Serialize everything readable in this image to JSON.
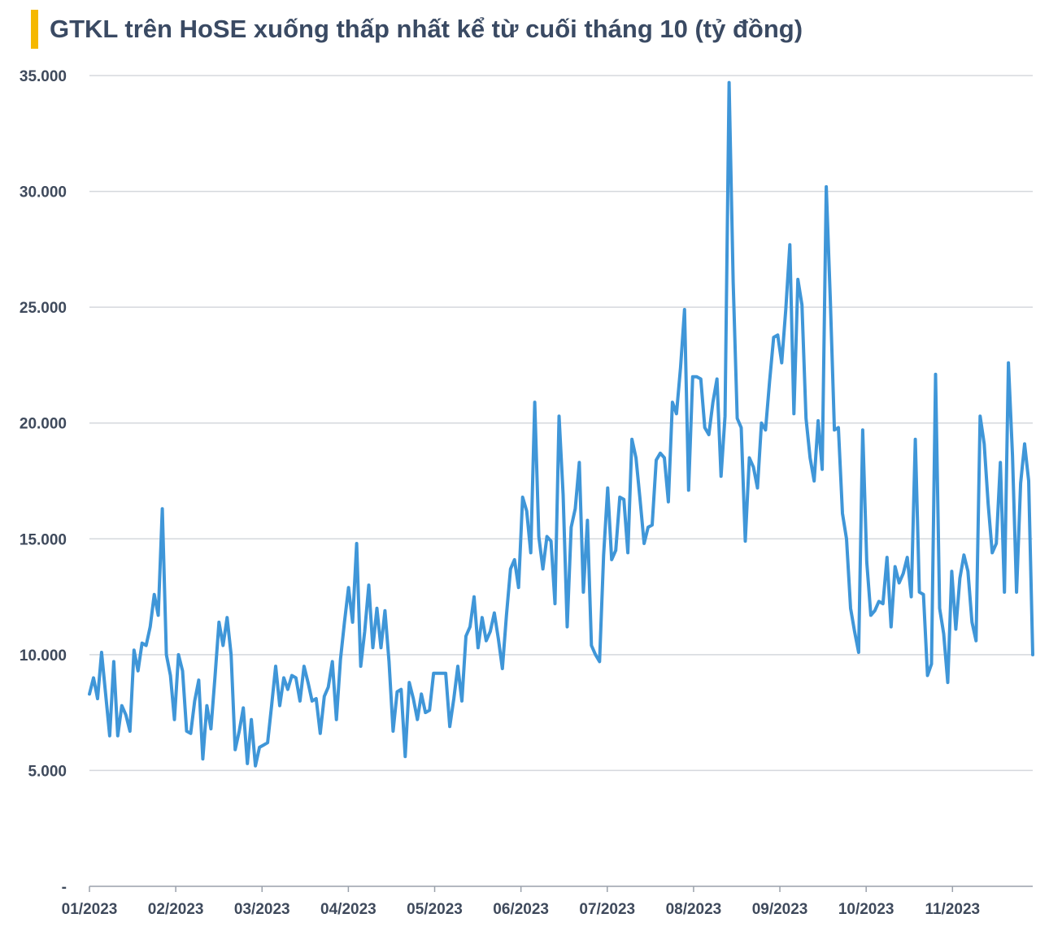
{
  "title": "GTKL trên HoSE xuống thấp nhất kể từ cuối tháng 10 (tỷ đồng)",
  "colors": {
    "accent": "#f5b800",
    "line": "#3f96d8",
    "grid": "#d5d8dd",
    "axis": "#9aa1ab",
    "text": "#3f4a5c"
  },
  "chart_data": {
    "type": "line",
    "title": "GTKL trên HoSE xuống thấp nhất kể từ cuối tháng 10 (tỷ đồng)",
    "ylim": [
      0,
      35000
    ],
    "y_ticks": [
      {
        "value": 0,
        "label": "-"
      },
      {
        "value": 5000,
        "label": "5.000"
      },
      {
        "value": 10000,
        "label": "10.000"
      },
      {
        "value": 15000,
        "label": "15.000"
      },
      {
        "value": 20000,
        "label": "20.000"
      },
      {
        "value": 25000,
        "label": "25.000"
      },
      {
        "value": 30000,
        "label": "30.000"
      },
      {
        "value": 35000,
        "label": "35.000"
      }
    ],
    "x_ticks": [
      "01/2023",
      "02/2023",
      "03/2023",
      "04/2023",
      "05/2023",
      "06/2023",
      "07/2023",
      "08/2023",
      "09/2023",
      "10/2023",
      "11/2023"
    ],
    "grid": true,
    "legend": "none",
    "series": [
      {
        "values": [
          8300,
          9000,
          8100,
          10100,
          8300,
          6500,
          9700,
          6500,
          7800,
          7400,
          6700,
          10200,
          9300,
          10500,
          10400,
          11200,
          12600,
          11700,
          16300,
          10000,
          9100,
          7200,
          10000,
          9300,
          6700,
          6600,
          8000,
          8900,
          5500,
          7800,
          6800,
          9000,
          11400,
          10400,
          11600,
          10000,
          5900,
          6700,
          7700,
          5300,
          7200,
          5200,
          6000,
          6100,
          6200,
          7800,
          9500,
          7800,
          9000,
          8500,
          9100,
          9000,
          8000,
          9500,
          8800,
          8000,
          8100,
          6600,
          8200,
          8600,
          9700,
          7200,
          9800,
          11400,
          12900,
          11400,
          14800,
          9500,
          11000,
          13000,
          10300,
          12000,
          10300,
          11900,
          9700,
          6700,
          8400,
          8500,
          5600,
          8800,
          8100,
          7200,
          8300,
          7500,
          7600,
          9200,
          9200,
          9200,
          9200,
          6900,
          8100,
          9500,
          8000,
          10800,
          11200,
          12500,
          10300,
          11600,
          10600,
          11000,
          11800,
          10700,
          9400,
          11700,
          13700,
          14100,
          12900,
          16800,
          16200,
          14400,
          20900,
          15100,
          13700,
          15100,
          14900,
          12200,
          20300,
          16900,
          11200,
          15500,
          16300,
          18300,
          12700,
          15800,
          10400,
          10000,
          9700,
          14300,
          17200,
          14100,
          14500,
          16800,
          16700,
          14400,
          19300,
          18500,
          16700,
          14800,
          15500,
          15600,
          18400,
          18700,
          18500,
          16600,
          20900,
          20400,
          22400,
          24900,
          17100,
          22000,
          22000,
          21900,
          19800,
          19500,
          20900,
          21900,
          17700,
          20300,
          34700,
          26100,
          20200,
          19800,
          14900,
          18500,
          18100,
          17200,
          20000,
          19700,
          21800,
          23700,
          23800,
          22600,
          24900,
          27700,
          20400,
          26200,
          25100,
          20200,
          18500,
          17500,
          20100,
          18000,
          30200,
          25300,
          19700,
          19800,
          16100,
          15000,
          12000,
          11000,
          10100,
          19700,
          14000,
          11700,
          11900,
          12300,
          12200,
          14200,
          11200,
          13800,
          13100,
          13500,
          14200,
          12500,
          19300,
          12700,
          12600,
          9100,
          9600,
          22100,
          12000,
          10900,
          8800,
          13600,
          11100,
          13300,
          14300,
          13600,
          11400,
          10600,
          20300,
          19100,
          16500,
          14400,
          14800,
          18300,
          12700,
          22600,
          18600,
          12700,
          17400,
          19100,
          17500,
          10000
        ]
      }
    ]
  }
}
